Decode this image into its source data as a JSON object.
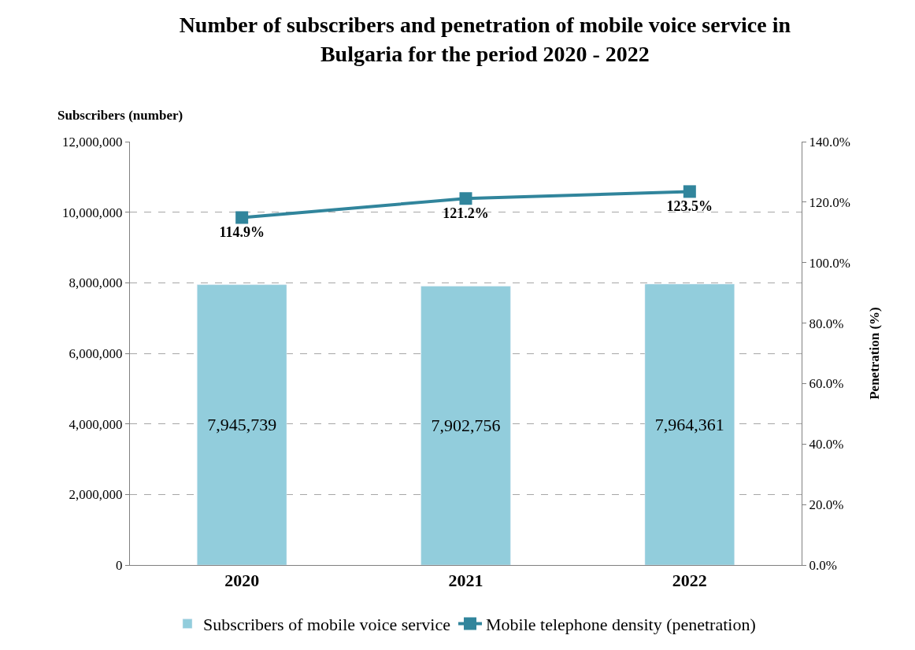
{
  "chart_data": {
    "type": "bar",
    "title": "Number of subscribers and penetration of mobile voice service in Bulgaria for the period 2020 - 2022",
    "ylabel": "Subscribers (number)",
    "y2label": "Penetration (%)",
    "categories": [
      "2020",
      "2021",
      "2022"
    ],
    "series": [
      {
        "name": "Subscribers of mobile voice service",
        "color": "#92cddc",
        "values": [
          7945739,
          7902756,
          7964361
        ],
        "value_labels": [
          "7,945,739",
          "7,902,756",
          "7,964,361"
        ]
      },
      {
        "name": "Mobile telephone density (penetration)",
        "type": "line",
        "axis": "y2",
        "color": "#31859c",
        "marker": "square",
        "values": [
          114.9,
          121.2,
          123.5
        ],
        "value_labels": [
          "114.9%",
          "121.2%",
          "123.5%"
        ]
      }
    ],
    "ylim": [
      0,
      12000000
    ],
    "yticks": [
      {
        "value": 0,
        "label": "0"
      },
      {
        "value": 2000000,
        "label": "2,000,000"
      },
      {
        "value": 4000000,
        "label": "4,000,000"
      },
      {
        "value": 6000000,
        "label": "6,000,000"
      },
      {
        "value": 8000000,
        "label": "8,000,000"
      },
      {
        "value": 10000000,
        "label": "10,000,000"
      },
      {
        "value": 12000000,
        "label": "12,000,000"
      }
    ],
    "y2lim": [
      0,
      140
    ],
    "y2ticks": [
      {
        "value": 0,
        "label": "0.0%"
      },
      {
        "value": 20,
        "label": "20.0%"
      },
      {
        "value": 40,
        "label": "40.0%"
      },
      {
        "value": 60,
        "label": "60.0%"
      },
      {
        "value": 80,
        "label": "80.0%"
      },
      {
        "value": 100,
        "label": "100.0%"
      },
      {
        "value": 120,
        "label": "120.0%"
      },
      {
        "value": 140,
        "label": "140.0%"
      }
    ],
    "grid": "y",
    "legend": "bottom"
  }
}
